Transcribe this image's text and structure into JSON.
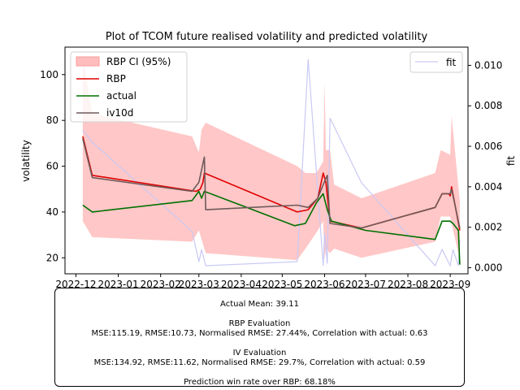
{
  "chart_data": {
    "type": "line",
    "title": "Plot of TCOM future realised volatility and predicted volatility",
    "ylabel": "volatility",
    "y2label": "fit",
    "ylim": [
      13,
      112
    ],
    "y2lim": [
      -0.0003,
      0.0109
    ],
    "yticks": [
      20,
      40,
      60,
      80,
      100
    ],
    "y2ticks": [
      "0.000",
      "0.002",
      "0.004",
      "0.006",
      "0.008",
      "0.010"
    ],
    "y2tick_values": [
      0.0,
      0.002,
      0.004,
      0.006,
      0.008,
      0.01
    ],
    "xlim": [
      "2022-11-23",
      "2023-09-14"
    ],
    "xticks": [
      "2022-12",
      "2023-01",
      "2023-02",
      "2023-03",
      "2023-04",
      "2023-05",
      "2023-06",
      "2023-07",
      "2023-08",
      "2023-09"
    ],
    "xtick_dates": [
      "2022-12-01",
      "2023-01-01",
      "2023-02-01",
      "2023-03-01",
      "2023-04-01",
      "2023-05-01",
      "2023-06-01",
      "2023-07-01",
      "2023-08-01",
      "2023-09-01"
    ],
    "legend_left": [
      "RBP CI (95%)",
      "RBP",
      "actual",
      "iv10d"
    ],
    "legend_right": [
      "fit"
    ],
    "colors": {
      "ci": "#ffbdbd",
      "rbp": "#e00000",
      "actual": "#007000",
      "iv10d": "#6e5a5a",
      "fit": "#c9c9f5"
    },
    "ci": {
      "x": [
        "2022-12-06",
        "2022-12-13",
        "2023-02-24",
        "2023-03-01",
        "2023-03-03",
        "2023-03-06",
        "2023-05-12",
        "2023-05-18",
        "2023-05-26",
        "2023-05-31",
        "2023-06-01",
        "2023-06-02",
        "2023-06-05",
        "2023-06-08",
        "2023-06-28",
        "2023-08-21",
        "2023-08-25",
        "2023-09-01",
        "2023-09-02",
        "2023-09-07",
        "2023-09-08"
      ],
      "upper": [
        107,
        83,
        73,
        66,
        76,
        79,
        60,
        57,
        57,
        62,
        97,
        67,
        67,
        52,
        46,
        57,
        67,
        65,
        82,
        51,
        45
      ],
      "lower": [
        36,
        29,
        27,
        32,
        28,
        22,
        19,
        24,
        31,
        36,
        19,
        24,
        22,
        24,
        20,
        27,
        38,
        38,
        35,
        22,
        17
      ]
    },
    "series": [
      {
        "name": "RBP",
        "x": [
          "2022-12-06",
          "2022-12-13",
          "2023-02-27",
          "2023-03-02",
          "2023-03-04",
          "2023-03-05",
          "2023-05-12",
          "2023-05-20",
          "2023-05-27",
          "2023-05-31",
          "2023-06-02",
          "2023-06-03",
          "2023-06-05",
          "2023-06-28",
          "2023-08-21",
          "2023-08-26",
          "2023-08-31",
          "2023-09-01",
          "2023-09-02",
          "2023-09-08"
        ],
        "values": [
          73,
          56,
          49,
          50,
          53,
          57,
          40,
          41,
          46,
          57,
          53,
          47,
          36,
          33,
          42,
          48,
          48,
          47,
          51,
          32
        ]
      },
      {
        "name": "actual",
        "x": [
          "2022-12-06",
          "2022-12-13",
          "2023-02-24",
          "2023-03-01",
          "2023-03-03",
          "2023-03-05",
          "2023-04-05",
          "2023-05-10",
          "2023-05-18",
          "2023-05-26",
          "2023-05-31",
          "2023-06-03",
          "2023-06-06",
          "2023-07-01",
          "2023-08-21",
          "2023-08-26",
          "2023-09-01",
          "2023-09-03",
          "2023-09-07",
          "2023-09-08"
        ],
        "values": [
          43,
          40,
          45,
          49,
          46,
          49,
          42,
          34,
          35,
          44,
          48,
          41,
          36,
          32,
          28,
          36,
          36,
          35,
          32,
          17
        ]
      },
      {
        "name": "iv10d",
        "x": [
          "2022-12-06",
          "2022-12-13",
          "2023-02-24",
          "2023-03-01",
          "2023-03-05",
          "2023-03-06",
          "2023-05-12",
          "2023-05-20",
          "2023-05-27",
          "2023-05-31",
          "2023-06-03",
          "2023-06-05",
          "2023-06-28",
          "2023-08-21",
          "2023-08-26",
          "2023-09-01",
          "2023-09-02",
          "2023-09-08"
        ],
        "values": [
          72,
          55,
          49,
          53,
          64,
          41,
          43,
          42,
          46,
          52,
          56,
          35,
          33,
          42,
          48,
          48,
          50,
          33
        ]
      }
    ],
    "fit": {
      "name": "fit",
      "x": [
        "2022-12-06",
        "2022-12-13",
        "2023-02-24",
        "2023-03-01",
        "2023-03-03",
        "2023-03-06",
        "2023-05-12",
        "2023-05-20",
        "2023-05-27",
        "2023-05-31",
        "2023-06-01",
        "2023-06-03",
        "2023-06-05",
        "2023-06-28",
        "2023-08-21",
        "2023-08-26",
        "2023-09-01",
        "2023-09-03",
        "2023-09-07",
        "2023-09-08"
      ],
      "values": [
        0.0068,
        0.0062,
        0.0018,
        0.0003,
        0.0009,
        0.0001,
        0.0003,
        0.0103,
        0.0038,
        0.0001,
        0.0017,
        0.0002,
        0.0074,
        0.0042,
        0.0001,
        0.0009,
        0.0001,
        0.0009,
        0.0001,
        0.0014
      ]
    }
  },
  "stats": {
    "actual_mean": "Actual Mean: 39.11",
    "rbp_heading": "RBP Evaluation",
    "rbp_metrics": "MSE:115.19, RMSE:10.73, Normalised RMSE: 27.44%, Correlation with actual: 0.63",
    "iv_heading": "IV Evaluation",
    "iv_metrics": "MSE:134.92, RMSE:11.62, Normalised RMSE: 29.7%, Correlation with actual: 0.59",
    "win_rate": "Prediction win rate over RBP: 68.18%"
  }
}
